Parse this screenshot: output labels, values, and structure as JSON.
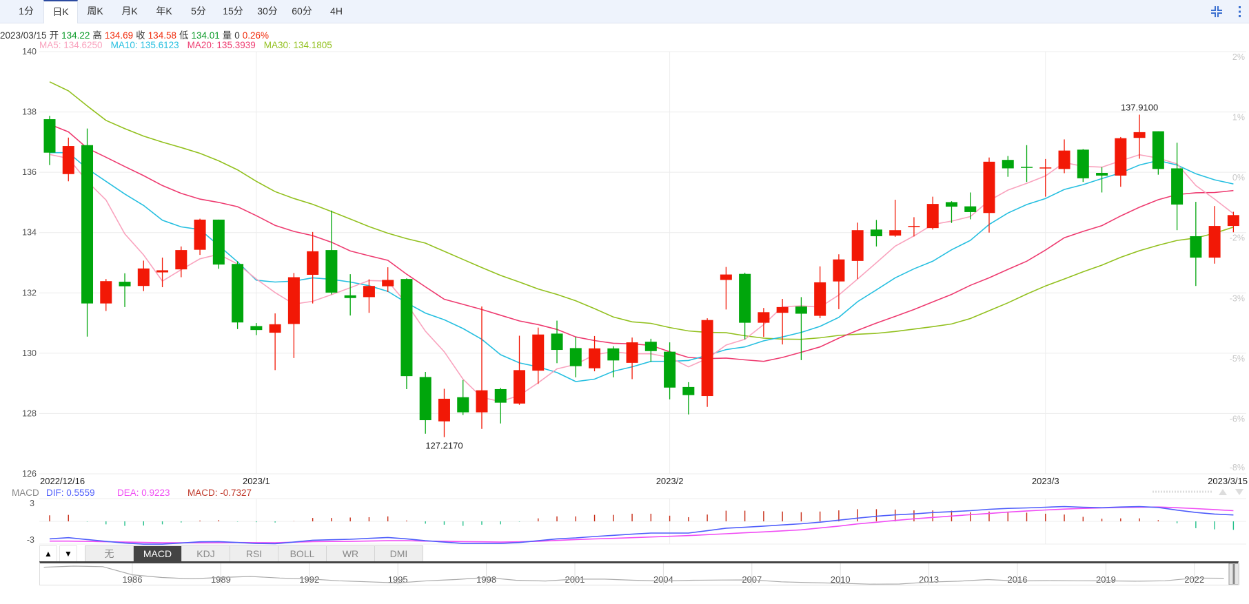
{
  "toolbar": {
    "tabs": [
      "1分",
      "日K",
      "周K",
      "月K",
      "年K",
      "5分",
      "15分",
      "30分",
      "60分",
      "4H"
    ],
    "active_tab": "日K",
    "icons": [
      "collapse-icon",
      "more-vertical-icon"
    ]
  },
  "info": {
    "date": "2023/03/15",
    "open_label": "开",
    "open": "134.22",
    "high_label": "高",
    "high": "134.69",
    "close_label": "收",
    "close": "134.58",
    "low_label": "低",
    "low": "134.01",
    "volume_label": "量",
    "volume": "0",
    "change": "0.26%"
  },
  "ma_legend": {
    "ma5": "MA5: 134.6250",
    "ma10": "MA10: 135.6123",
    "ma20": "MA20: 135.3939",
    "ma30": "MA30: 134.1805"
  },
  "colors": {
    "up": "#f21806",
    "down": "#00a60c",
    "ma5": "#f9a3be",
    "ma10": "#26bfe0",
    "ma20": "#ee3b70",
    "ma30": "#92c01e",
    "dif": "#4e5dfb",
    "dea": "#f04cf4",
    "macd": "#c0392b",
    "accent": "#2b4aa0"
  },
  "chart_data": {
    "type": "candlestick",
    "ylim": [
      126,
      140
    ],
    "y_ticks": [
      "140",
      "138",
      "136",
      "134",
      "132",
      "130",
      "128",
      "126"
    ],
    "y_ticks_right": [
      "2%",
      "1%",
      "0%",
      "-2%",
      "-3%",
      "-5%",
      "-6%",
      "-8%"
    ],
    "x_labels": [
      {
        "index": 0,
        "text": "2022/12/16"
      },
      {
        "index": 11,
        "text": "2023/1"
      },
      {
        "index": 33,
        "text": "2023/2"
      },
      {
        "index": 53,
        "text": "2023/3"
      },
      {
        "index": 63,
        "text": "2023/3/15"
      }
    ],
    "annotations": [
      {
        "index": 58,
        "text": "137.9100",
        "position": "above"
      },
      {
        "index": 21,
        "text": "127.2170",
        "position": "below"
      }
    ],
    "ohlc": [
      [
        137.76,
        137.87,
        136.24,
        136.65
      ],
      [
        135.94,
        137.15,
        135.7,
        136.87
      ],
      [
        136.9,
        137.45,
        130.55,
        131.65
      ],
      [
        131.65,
        132.46,
        131.4,
        132.39
      ],
      [
        132.37,
        132.65,
        131.53,
        132.22
      ],
      [
        132.23,
        133.07,
        132.06,
        132.81
      ],
      [
        132.68,
        133.17,
        132.19,
        132.75
      ],
      [
        132.78,
        133.54,
        132.52,
        133.42
      ],
      [
        133.43,
        134.46,
        133.26,
        134.43
      ],
      [
        134.43,
        134.43,
        132.8,
        132.94
      ],
      [
        132.96,
        133.05,
        130.8,
        131.02
      ],
      [
        130.9,
        131.0,
        130.6,
        130.77
      ],
      [
        130.68,
        131.32,
        129.44,
        130.96
      ],
      [
        130.97,
        132.66,
        129.84,
        132.52
      ],
      [
        132.6,
        134.02,
        131.65,
        133.38
      ],
      [
        133.42,
        134.73,
        131.95,
        132.01
      ],
      [
        131.92,
        132.62,
        131.25,
        131.83
      ],
      [
        131.86,
        132.45,
        131.34,
        132.23
      ],
      [
        132.22,
        132.85,
        132.03,
        132.43
      ],
      [
        132.46,
        132.48,
        128.81,
        129.24
      ],
      [
        129.21,
        129.38,
        127.33,
        127.78
      ],
      [
        127.74,
        128.82,
        127.217,
        128.49
      ],
      [
        128.54,
        129.11,
        127.95,
        128.04
      ],
      [
        128.04,
        131.55,
        127.49,
        128.77
      ],
      [
        128.81,
        128.85,
        127.67,
        128.36
      ],
      [
        128.33,
        130.58,
        128.29,
        129.44
      ],
      [
        129.42,
        130.85,
        128.98,
        130.62
      ],
      [
        130.65,
        131.08,
        129.67,
        130.11
      ],
      [
        130.17,
        130.54,
        129.2,
        129.57
      ],
      [
        129.5,
        130.57,
        129.4,
        130.16
      ],
      [
        130.16,
        130.23,
        129.2,
        129.76
      ],
      [
        129.68,
        130.52,
        129.14,
        130.36
      ],
      [
        130.38,
        130.48,
        129.71,
        130.07
      ],
      [
        130.05,
        130.36,
        128.47,
        128.86
      ],
      [
        128.88,
        129.04,
        127.97,
        128.61
      ],
      [
        128.58,
        131.16,
        128.22,
        131.1
      ],
      [
        132.43,
        132.86,
        131.45,
        132.61
      ],
      [
        132.63,
        132.67,
        130.46,
        131.01
      ],
      [
        131.01,
        131.5,
        130.54,
        131.36
      ],
      [
        131.34,
        131.8,
        130.29,
        131.53
      ],
      [
        131.55,
        131.86,
        129.77,
        131.31
      ],
      [
        131.24,
        132.88,
        131.16,
        132.35
      ],
      [
        132.38,
        133.28,
        131.46,
        133.11
      ],
      [
        133.06,
        134.33,
        132.46,
        134.08
      ],
      [
        134.1,
        134.42,
        133.54,
        133.88
      ],
      [
        133.9,
        135.09,
        133.86,
        134.08
      ],
      [
        134.19,
        134.51,
        133.87,
        134.22
      ],
      [
        134.15,
        135.19,
        134.1,
        134.95
      ],
      [
        135.01,
        135.04,
        134.32,
        134.86
      ],
      [
        134.87,
        135.33,
        134.44,
        134.68
      ],
      [
        134.65,
        136.49,
        134.0,
        136.35
      ],
      [
        136.41,
        136.54,
        135.85,
        136.13
      ],
      [
        136.18,
        136.9,
        135.68,
        136.16
      ],
      [
        136.14,
        136.44,
        135.19,
        136.16
      ],
      [
        136.11,
        137.09,
        135.97,
        136.72
      ],
      [
        136.75,
        136.77,
        135.68,
        135.8
      ],
      [
        135.98,
        136.17,
        135.33,
        135.89
      ],
      [
        135.89,
        137.17,
        135.52,
        137.13
      ],
      [
        137.14,
        137.91,
        136.45,
        137.33
      ],
      [
        137.36,
        137.36,
        135.92,
        136.11
      ],
      [
        136.13,
        136.98,
        134.08,
        134.93
      ],
      [
        133.88,
        135.02,
        132.23,
        133.17
      ],
      [
        133.17,
        134.88,
        132.97,
        134.22
      ],
      [
        134.22,
        134.69,
        134.01,
        134.58
      ]
    ],
    "ma": {
      "ma5": [
        136.59,
        136.46,
        135.7,
        135.08,
        133.96,
        133.26,
        132.39,
        132.77,
        133.13,
        133.28,
        132.96,
        132.46,
        132.01,
        131.63,
        131.72,
        131.94,
        132.17,
        132.41,
        132.39,
        131.64,
        130.73,
        130.05,
        129.14,
        128.53,
        128.4,
        128.6,
        129.02,
        129.48,
        129.63,
        129.95,
        130.05,
        129.98,
        129.98,
        129.86,
        129.55,
        129.82,
        130.27,
        130.46,
        130.95,
        131.54,
        131.57,
        131.53,
        131.93,
        132.46,
        133.0,
        133.55,
        133.89,
        134.27,
        134.38,
        134.53,
        135.06,
        135.41,
        135.63,
        135.88,
        136.32,
        136.2,
        136.17,
        136.38,
        136.58,
        136.47,
        136.28,
        135.56,
        135.11,
        134.625
      ],
      "ma10": [
        136.65,
        136.65,
        136.12,
        135.7,
        135.28,
        134.9,
        134.41,
        134.19,
        134.1,
        133.57,
        133.03,
        132.42,
        132.36,
        132.39,
        132.5,
        132.45,
        132.36,
        132.24,
        132.05,
        131.67,
        131.33,
        131.11,
        130.82,
        130.46,
        129.95,
        129.68,
        129.55,
        129.36,
        129.06,
        129.14,
        129.4,
        129.55,
        129.73,
        129.73,
        129.76,
        129.93,
        130.12,
        130.21,
        130.41,
        130.54,
        130.69,
        130.89,
        131.19,
        131.71,
        132.1,
        132.5,
        132.8,
        133.05,
        133.43,
        133.74,
        134.27,
        134.65,
        134.93,
        135.13,
        135.43,
        135.59,
        135.79,
        135.98,
        136.24,
        136.39,
        136.24,
        135.95,
        135.75,
        135.6123
      ],
      "ma20": [
        137.59,
        137.34,
        136.8,
        136.5,
        136.19,
        135.89,
        135.56,
        135.3,
        135.11,
        135.0,
        134.86,
        134.56,
        134.24,
        134.04,
        133.9,
        133.68,
        133.39,
        133.23,
        133.08,
        132.62,
        132.2,
        131.79,
        131.62,
        131.45,
        131.26,
        131.07,
        130.95,
        130.79,
        130.54,
        130.42,
        130.33,
        130.31,
        130.26,
        130.05,
        129.86,
        129.82,
        129.84,
        129.78,
        129.73,
        129.86,
        130.03,
        130.21,
        130.5,
        130.76,
        131.0,
        131.22,
        131.45,
        131.7,
        131.95,
        132.25,
        132.5,
        132.78,
        133.05,
        133.42,
        133.83,
        134.04,
        134.23,
        134.55,
        134.84,
        135.09,
        135.26,
        135.32,
        135.33,
        135.3939
      ],
      "ma30": [
        139.0,
        138.7,
        138.2,
        137.72,
        137.45,
        137.2,
        137.0,
        136.82,
        136.63,
        136.38,
        136.08,
        135.7,
        135.36,
        135.13,
        134.94,
        134.7,
        134.45,
        134.2,
        133.98,
        133.8,
        133.65,
        133.38,
        133.11,
        132.84,
        132.58,
        132.36,
        132.13,
        131.95,
        131.74,
        131.48,
        131.2,
        131.04,
        130.99,
        130.85,
        130.74,
        130.69,
        130.68,
        130.58,
        130.5,
        130.47,
        130.46,
        130.51,
        130.59,
        130.63,
        130.66,
        130.72,
        130.8,
        130.88,
        130.97,
        131.15,
        131.41,
        131.67,
        131.96,
        132.23,
        132.46,
        132.7,
        132.92,
        133.18,
        133.4,
        133.58,
        133.74,
        133.82,
        133.98,
        134.1805
      ]
    },
    "macd": {
      "title": "MACD",
      "dif_label": "DIF: 0.5559",
      "dea_label": "DEA: 0.9223",
      "macd_label": "MACD: -0.7327",
      "y_ticks": [
        "3",
        "-3"
      ],
      "hist": [
        0.52,
        0.56,
        -0.03,
        -0.26,
        -0.39,
        -0.36,
        -0.26,
        -0.1,
        0.07,
        0.1,
        -0.03,
        -0.07,
        -0.1,
        0.02,
        0.29,
        0.29,
        0.33,
        0.36,
        0.43,
        0.07,
        -0.2,
        -0.29,
        -0.39,
        -0.29,
        -0.26,
        -0.03,
        0.26,
        0.43,
        0.43,
        0.56,
        0.56,
        0.66,
        0.66,
        0.49,
        0.36,
        0.59,
        0.92,
        0.92,
        0.88,
        0.85,
        0.79,
        0.85,
        0.95,
        1.05,
        1.05,
        1.02,
        0.95,
        0.95,
        0.92,
        0.79,
        0.85,
        0.82,
        0.75,
        0.66,
        0.59,
        0.39,
        0.23,
        0.26,
        0.26,
        0.1,
        -0.16,
        -0.59,
        -0.69,
        -0.7327
      ],
      "dif": [
        -1.51,
        -1.41,
        -1.57,
        -1.73,
        -1.87,
        -1.97,
        -1.97,
        -1.87,
        -1.77,
        -1.75,
        -1.83,
        -1.91,
        -1.93,
        -1.79,
        -1.63,
        -1.59,
        -1.55,
        -1.47,
        -1.39,
        -1.51,
        -1.67,
        -1.79,
        -1.91,
        -1.91,
        -1.91,
        -1.83,
        -1.67,
        -1.51,
        -1.43,
        -1.31,
        -1.21,
        -1.11,
        -1.01,
        -1.01,
        -1.01,
        -0.81,
        -0.59,
        -0.51,
        -0.41,
        -0.31,
        -0.21,
        -0.07,
        0.1,
        0.28,
        0.44,
        0.56,
        0.64,
        0.76,
        0.84,
        0.92,
        1.04,
        1.12,
        1.16,
        1.22,
        1.28,
        1.22,
        1.18,
        1.24,
        1.28,
        1.2,
        0.97,
        0.77,
        0.63,
        0.5559
      ],
      "dea": [
        -1.71,
        -1.71,
        -1.73,
        -1.76,
        -1.79,
        -1.82,
        -1.85,
        -1.85,
        -1.85,
        -1.84,
        -1.83,
        -1.84,
        -1.85,
        -1.8,
        -1.75,
        -1.74,
        -1.73,
        -1.7,
        -1.67,
        -1.67,
        -1.71,
        -1.72,
        -1.75,
        -1.77,
        -1.79,
        -1.77,
        -1.72,
        -1.65,
        -1.57,
        -1.52,
        -1.47,
        -1.41,
        -1.35,
        -1.29,
        -1.23,
        -1.15,
        -1.07,
        -0.99,
        -0.91,
        -0.82,
        -0.73,
        -0.57,
        -0.41,
        -0.22,
        -0.08,
        0.08,
        0.22,
        0.34,
        0.46,
        0.58,
        0.68,
        0.8,
        0.9,
        0.98,
        1.06,
        1.12,
        1.16,
        1.2,
        1.22,
        1.24,
        1.18,
        1.1,
        1.02,
        0.9223
      ]
    }
  },
  "indicators": {
    "up_arrow": "▲",
    "down_arrow": "▼",
    "tabs": [
      "无",
      "MACD",
      "KDJ",
      "RSI",
      "BOLL",
      "WR",
      "DMI"
    ],
    "active": "MACD"
  },
  "navigator": {
    "year_labels": [
      "1986",
      "1989",
      "1992",
      "1995",
      "1998",
      "2001",
      "2004",
      "2007",
      "2010",
      "2013",
      "2016",
      "2019",
      "2022"
    ],
    "history": [
      [
        1983,
        235
      ],
      [
        1984,
        245
      ],
      [
        1985,
        240
      ],
      [
        1986,
        165
      ],
      [
        1987,
        140
      ],
      [
        1988,
        128
      ],
      [
        1989,
        140
      ],
      [
        1990,
        150
      ],
      [
        1991,
        135
      ],
      [
        1992,
        127
      ],
      [
        1993,
        110
      ],
      [
        1994,
        100
      ],
      [
        1995,
        90
      ],
      [
        1996,
        110
      ],
      [
        1997,
        122
      ],
      [
        1998,
        140
      ],
      [
        1999,
        115
      ],
      [
        2000,
        108
      ],
      [
        2001,
        125
      ],
      [
        2002,
        125
      ],
      [
        2003,
        115
      ],
      [
        2004,
        108
      ],
      [
        2005,
        115
      ],
      [
        2006,
        117
      ],
      [
        2007,
        118
      ],
      [
        2008,
        100
      ],
      [
        2009,
        93
      ],
      [
        2010,
        87
      ],
      [
        2011,
        79
      ],
      [
        2012,
        80
      ],
      [
        2013,
        98
      ],
      [
        2014,
        106
      ],
      [
        2015,
        121
      ],
      [
        2016,
        108
      ],
      [
        2017,
        112
      ],
      [
        2018,
        110
      ],
      [
        2019,
        109
      ],
      [
        2020,
        106
      ],
      [
        2021,
        110
      ],
      [
        2022,
        135
      ],
      [
        2023,
        133
      ]
    ]
  }
}
